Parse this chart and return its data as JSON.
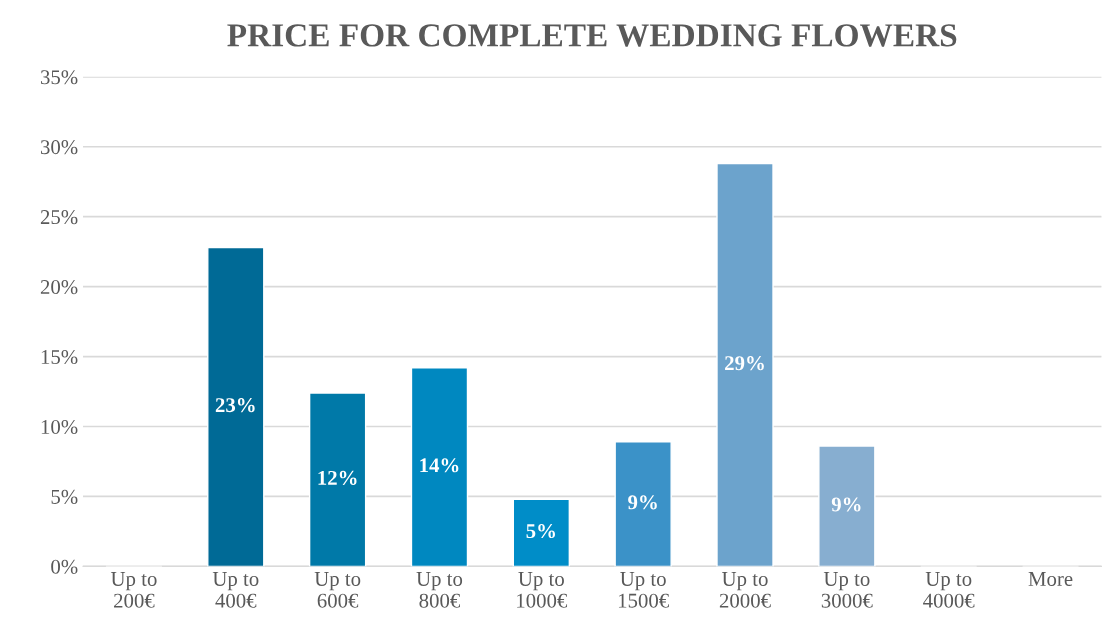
{
  "chart_data": {
    "type": "bar",
    "title": "PRICE FOR COMPLETE WEDDING FLOWERS",
    "categories": [
      "Up to\n200€",
      "Up to\n400€",
      "Up to\n600€",
      "Up to\n800€",
      "Up to\n1000€",
      "Up to\n1500€",
      "Up to\n2000€",
      "Up to\n3000€",
      "Up to\n4000€",
      "More"
    ],
    "values": [
      0,
      22.8,
      12.4,
      14.2,
      4.8,
      8.9,
      28.8,
      8.6,
      0,
      0
    ],
    "value_labels": [
      null,
      "23%",
      "12%",
      "14%",
      "5%",
      "9%",
      "29%",
      "9%",
      null,
      null
    ],
    "colors": [
      null,
      "#006a96",
      "#0079a8",
      "#0088c0",
      "#008dc8",
      "#3b92c8",
      "#6ca3cc",
      "#87aed0",
      null,
      null
    ],
    "ylim": [
      0,
      35
    ],
    "yticks": [
      {
        "value": 0,
        "label": "0%"
      },
      {
        "value": 5,
        "label": "5%"
      },
      {
        "value": 10,
        "label": "10%"
      },
      {
        "value": 15,
        "label": "15%"
      },
      {
        "value": 20,
        "label": "20%"
      },
      {
        "value": 25,
        "label": "25%"
      },
      {
        "value": 30,
        "label": "30%"
      },
      {
        "value": 35,
        "label": "35%"
      }
    ],
    "grid": "y"
  }
}
